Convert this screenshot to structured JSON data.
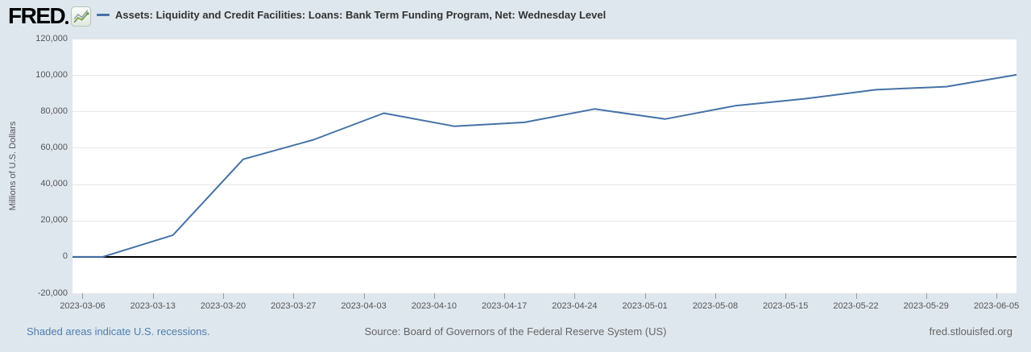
{
  "header": {
    "logo_text": "FRED",
    "series_title": "Assets: Liquidity and Credit Facilities: Loans: Bank Term Funding Program, Net: Wednesday Level"
  },
  "footer": {
    "recessions_note": "Shaded areas indicate U.S. recessions.",
    "source": "Source: Board of Governors of the Federal Reserve System (US)",
    "site": "fred.stlouisfed.org"
  },
  "chart_data": {
    "type": "line",
    "title": "Assets: Liquidity and Credit Facilities: Loans: Bank Term Funding Program, Net: Wednesday Level",
    "xlabel": "",
    "ylabel": "Millions of U.S. Dollars",
    "x": [
      "2023-03-01",
      "2023-03-08",
      "2023-03-15",
      "2023-03-22",
      "2023-03-29",
      "2023-04-05",
      "2023-04-12",
      "2023-04-19",
      "2023-04-26",
      "2023-05-03",
      "2023-05-10",
      "2023-05-17",
      "2023-05-24",
      "2023-05-31",
      "2023-06-07"
    ],
    "values": [
      0,
      0,
      11943,
      53669,
      64403,
      79021,
      71837,
      73982,
      81327,
      75778,
      83101,
      87006,
      91907,
      93615,
      100161
    ],
    "x_ticks": [
      "2023-03-06",
      "2023-03-13",
      "2023-03-20",
      "2023-03-27",
      "2023-04-03",
      "2023-04-10",
      "2023-04-17",
      "2023-04-24",
      "2023-05-01",
      "2023-05-08",
      "2023-05-15",
      "2023-05-22",
      "2023-05-29",
      "2023-06-05"
    ],
    "y_ticks": [
      -20000,
      0,
      20000,
      40000,
      60000,
      80000,
      100000,
      120000
    ],
    "xlim": [
      "2023-03-05",
      "2023-06-07"
    ],
    "ylim": [
      -20000,
      120000
    ],
    "grid": true,
    "legend_position": "top",
    "line_color": "#4572a7",
    "zero_line_color": "#000000",
    "grid_color": "#e6e6e6",
    "tick_color": "#999999",
    "page_background": "#dfe7ee",
    "plot_background": "#ffffff"
  }
}
